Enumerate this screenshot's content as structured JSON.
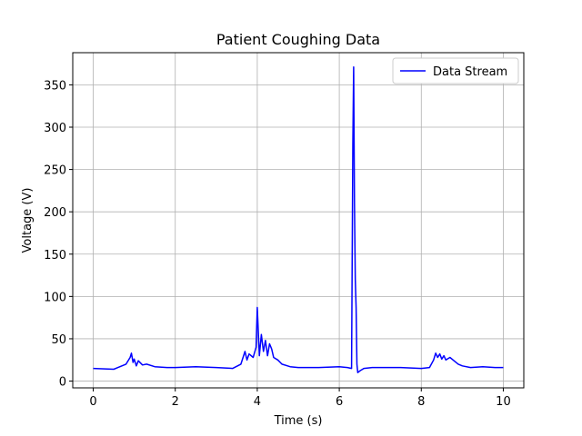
{
  "chart_data": {
    "type": "line",
    "title": "Patient Coughing Data",
    "xlabel": "Time (s)",
    "ylabel": "Voltage (V)",
    "xlim": [
      -0.5,
      10.5
    ],
    "ylim": [
      -8,
      388
    ],
    "xticks": [
      0,
      2,
      4,
      6,
      8,
      10
    ],
    "yticks": [
      0,
      50,
      100,
      150,
      200,
      250,
      300,
      350
    ],
    "grid": true,
    "legend_position": "top-right",
    "series": [
      {
        "name": "Data Stream",
        "color": "#0000ff",
        "x": [
          0.0,
          0.5,
          0.8,
          0.9,
          0.93,
          0.97,
          1.0,
          1.05,
          1.1,
          1.2,
          1.3,
          1.5,
          1.8,
          2.0,
          2.5,
          3.0,
          3.4,
          3.6,
          3.7,
          3.75,
          3.8,
          3.9,
          3.97,
          4.0,
          4.05,
          4.1,
          4.15,
          4.2,
          4.25,
          4.3,
          4.35,
          4.4,
          4.5,
          4.6,
          4.8,
          5.0,
          5.5,
          6.0,
          6.2,
          6.3,
          6.33,
          6.35,
          6.37,
          6.39,
          6.41,
          6.43,
          6.45,
          6.5,
          6.6,
          6.8,
          7.0,
          7.5,
          8.0,
          8.2,
          8.3,
          8.35,
          8.4,
          8.45,
          8.5,
          8.55,
          8.6,
          8.7,
          8.8,
          8.9,
          9.0,
          9.2,
          9.5,
          9.8,
          10.0
        ],
        "y": [
          15,
          14,
          20,
          28,
          33,
          22,
          26,
          18,
          24,
          19,
          20,
          17,
          16,
          16,
          17,
          16,
          15,
          20,
          35,
          25,
          32,
          28,
          40,
          87,
          30,
          55,
          35,
          48,
          30,
          44,
          38,
          28,
          25,
          20,
          17,
          16,
          16,
          17,
          16,
          15,
          280,
          371,
          210,
          120,
          87,
          20,
          10,
          12,
          15,
          16,
          16,
          16,
          15,
          16,
          25,
          33,
          28,
          32,
          26,
          30,
          25,
          28,
          24,
          20,
          18,
          16,
          17,
          16,
          16
        ]
      }
    ]
  }
}
